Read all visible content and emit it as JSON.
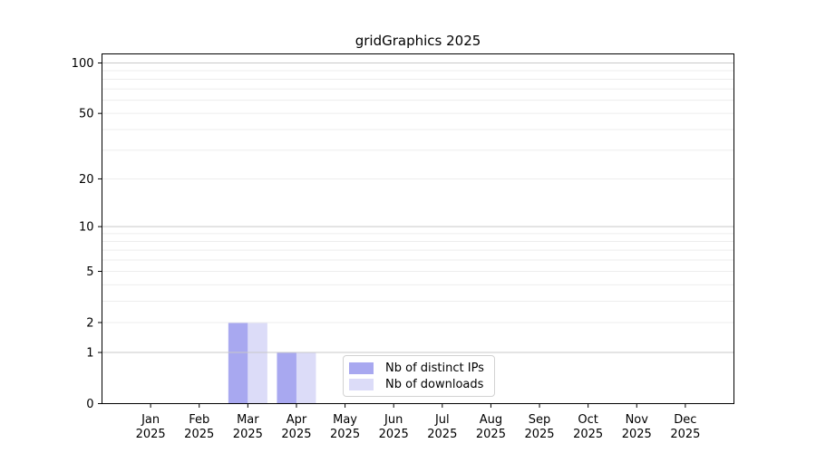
{
  "figure": {
    "title": "gridGraphics 2025"
  },
  "chart_data": {
    "type": "bar",
    "title": "gridGraphics 2025",
    "months": [
      "Jan",
      "Feb",
      "Mar",
      "Apr",
      "May",
      "Jun",
      "Jul",
      "Aug",
      "Sep",
      "Oct",
      "Nov",
      "Dec"
    ],
    "year": "2025",
    "series": [
      {
        "name": "Nb of distinct IPs",
        "color": "#a8a8f0",
        "values": [
          0,
          0,
          2,
          1,
          0,
          0,
          0,
          0,
          0,
          0,
          0,
          0
        ]
      },
      {
        "name": "Nb of downloads",
        "color": "#dcdcf8",
        "values": [
          0,
          0,
          2,
          1,
          0,
          0,
          0,
          0,
          0,
          0,
          0,
          0
        ]
      }
    ],
    "xlabel": "",
    "ylabel": "",
    "yscale": "log1p",
    "ylim": [
      0,
      112
    ],
    "yticks": [
      0,
      1,
      2,
      5,
      10,
      20,
      50,
      100
    ],
    "grid": {
      "major_lines": [
        1,
        10,
        100
      ],
      "minor_lines": [
        2,
        3,
        4,
        5,
        6,
        7,
        8,
        9,
        20,
        30,
        40,
        50,
        60,
        70,
        80,
        90
      ],
      "major_color": "#c9c9c9",
      "minor_color": "#ededed"
    },
    "legend": {
      "position": "inside-bottom-center",
      "border_color": "#d2d2d2",
      "entries": [
        "Nb of distinct IPs",
        "Nb of downloads"
      ]
    },
    "axis_color": "#000000",
    "tick_label_color": "#000000",
    "tick_label_font_size": 13
  }
}
